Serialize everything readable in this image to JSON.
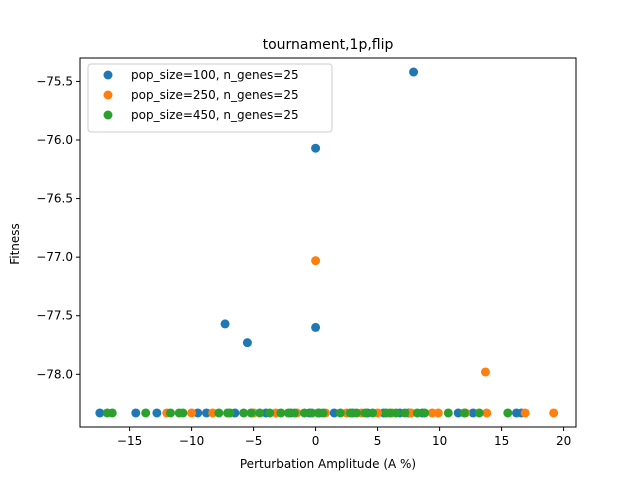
{
  "chart_data": {
    "type": "scatter",
    "title": "tournament,1p,flip",
    "xlabel": "Perturbation Amplitude (A %)",
    "ylabel": "Fitness",
    "xlim": [
      -19.0,
      21.0
    ],
    "ylim": [
      -78.45,
      -75.3
    ],
    "xticks": [
      -15,
      -10,
      -5,
      0,
      5,
      10,
      15,
      20
    ],
    "yticks": [
      -78.0,
      -77.5,
      -77.0,
      -76.5,
      -76.0,
      -75.5
    ],
    "xtick_labels": [
      "−15",
      "−10",
      "−5",
      "0",
      "5",
      "10",
      "15",
      "20"
    ],
    "ytick_labels": [
      "−78.0",
      "−77.5",
      "−77.0",
      "−76.5",
      "−76.0",
      "−75.5"
    ],
    "legend_position": "top-left",
    "series": [
      {
        "name": "pop_size=100, n_genes=25",
        "color": "#1f77b4",
        "points": [
          [
            7.9,
            -75.42
          ],
          [
            0.0,
            -76.07
          ],
          [
            -7.3,
            -77.57
          ],
          [
            -5.5,
            -77.73
          ],
          [
            0.0,
            -77.6
          ],
          [
            -17.4,
            -78.33
          ],
          [
            -14.5,
            -78.33
          ],
          [
            -12.8,
            -78.33
          ],
          [
            -9.5,
            -78.33
          ],
          [
            -8.8,
            -78.33
          ],
          [
            -6.5,
            -78.33
          ],
          [
            -4.0,
            -78.33
          ],
          [
            -2.0,
            -78.33
          ],
          [
            -0.5,
            -78.33
          ],
          [
            0.3,
            -78.33
          ],
          [
            1.5,
            -78.33
          ],
          [
            3.0,
            -78.33
          ],
          [
            4.2,
            -78.33
          ],
          [
            5.5,
            -78.33
          ],
          [
            6.8,
            -78.33
          ],
          [
            7.5,
            -78.33
          ],
          [
            8.6,
            -78.33
          ],
          [
            11.5,
            -78.33
          ],
          [
            12.7,
            -78.33
          ],
          [
            16.2,
            -78.33
          ],
          [
            16.6,
            -78.33
          ]
        ]
      },
      {
        "name": "pop_size=250, n_genes=25",
        "color": "#ff7f0e",
        "points": [
          [
            0.0,
            -77.03
          ],
          [
            13.7,
            -77.98
          ],
          [
            -12.0,
            -78.33
          ],
          [
            -10.0,
            -78.33
          ],
          [
            -8.3,
            -78.33
          ],
          [
            -5.0,
            -78.33
          ],
          [
            -3.2,
            -78.33
          ],
          [
            -1.5,
            -78.33
          ],
          [
            0.8,
            -78.33
          ],
          [
            2.5,
            -78.33
          ],
          [
            3.7,
            -78.33
          ],
          [
            5.0,
            -78.33
          ],
          [
            6.2,
            -78.33
          ],
          [
            7.7,
            -78.33
          ],
          [
            9.4,
            -78.33
          ],
          [
            9.9,
            -78.33
          ],
          [
            12.1,
            -78.33
          ],
          [
            13.8,
            -78.33
          ],
          [
            16.9,
            -78.33
          ],
          [
            19.2,
            -78.33
          ]
        ]
      },
      {
        "name": "pop_size=450, n_genes=25",
        "color": "#2ca02c",
        "points": [
          [
            -16.8,
            -78.33
          ],
          [
            -16.4,
            -78.33
          ],
          [
            -13.7,
            -78.33
          ],
          [
            -11.7,
            -78.33
          ],
          [
            -11.0,
            -78.33
          ],
          [
            -10.7,
            -78.33
          ],
          [
            -7.8,
            -78.33
          ],
          [
            -7.1,
            -78.33
          ],
          [
            -6.9,
            -78.33
          ],
          [
            -5.8,
            -78.33
          ],
          [
            -5.2,
            -78.33
          ],
          [
            -4.5,
            -78.33
          ],
          [
            -3.7,
            -78.33
          ],
          [
            -2.8,
            -78.33
          ],
          [
            -2.2,
            -78.33
          ],
          [
            -1.7,
            -78.33
          ],
          [
            -0.9,
            -78.33
          ],
          [
            -0.3,
            -78.33
          ],
          [
            0.2,
            -78.33
          ],
          [
            0.6,
            -78.33
          ],
          [
            2.0,
            -78.33
          ],
          [
            2.8,
            -78.33
          ],
          [
            3.3,
            -78.33
          ],
          [
            4.0,
            -78.33
          ],
          [
            4.6,
            -78.33
          ],
          [
            5.7,
            -78.33
          ],
          [
            6.0,
            -78.33
          ],
          [
            6.5,
            -78.33
          ],
          [
            7.2,
            -78.33
          ],
          [
            8.2,
            -78.33
          ],
          [
            8.8,
            -78.33
          ],
          [
            10.7,
            -78.33
          ],
          [
            12.0,
            -78.33
          ],
          [
            13.2,
            -78.33
          ],
          [
            15.5,
            -78.33
          ]
        ]
      }
    ]
  }
}
